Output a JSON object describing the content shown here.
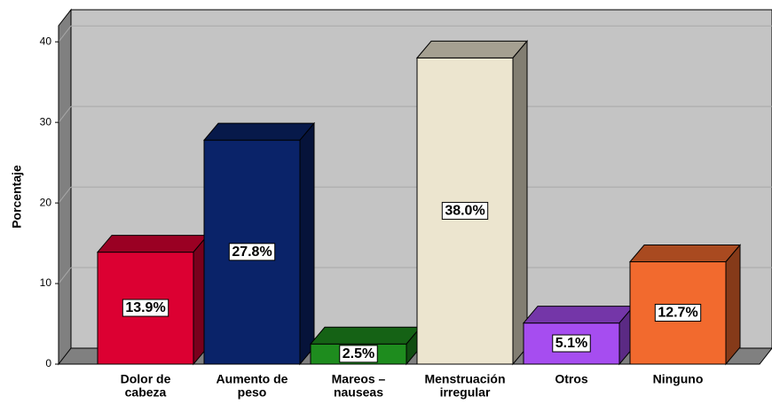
{
  "chart_data": {
    "type": "bar3d",
    "ylabel": "Porcentaje",
    "categories": [
      [
        "Dolor de",
        "cabeza"
      ],
      [
        "Aumento de",
        "peso"
      ],
      [
        "Mareos –",
        "nauseas"
      ],
      [
        "Menstruación",
        "irregular"
      ],
      [
        "Otros"
      ],
      [
        "Ninguno"
      ]
    ],
    "values": [
      13.9,
      27.8,
      2.5,
      38.0,
      5.1,
      12.7
    ],
    "value_labels": [
      "13.9%",
      "27.8%",
      "2.5%",
      "38.0%",
      "5.1%",
      "12.7%"
    ],
    "colors": [
      "#dc0032",
      "#0a2369",
      "#1e8c1e",
      "#ece5cf",
      "#a64df0",
      "#f26a2e"
    ],
    "ylim": [
      0,
      42
    ],
    "yticks": [
      0,
      10,
      20,
      30,
      40
    ],
    "grid": true
  }
}
